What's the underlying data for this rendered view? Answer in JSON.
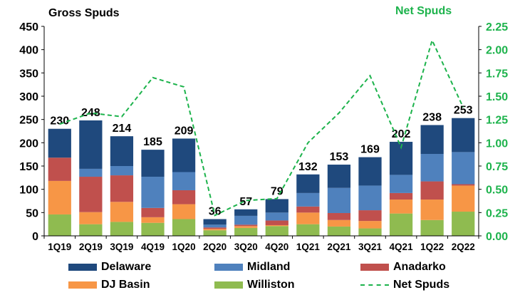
{
  "chart_data": {
    "type": "bar",
    "stacked": true,
    "title_left": "Gross Spuds",
    "title_right": "Net Spuds",
    "categories": [
      "1Q19",
      "2Q19",
      "3Q19",
      "4Q19",
      "1Q20",
      "2Q20",
      "3Q20",
      "4Q20",
      "1Q21",
      "2Q21",
      "3Q21",
      "4Q21",
      "1Q22",
      "2Q22"
    ],
    "series": [
      {
        "name": "Williston",
        "color": "#8fbb50",
        "values": [
          46,
          25,
          30,
          28,
          36,
          12,
          17,
          21,
          25,
          20,
          16,
          48,
          34,
          52
        ]
      },
      {
        "name": "DJ Basin",
        "color": "#f79646",
        "values": [
          72,
          26,
          43,
          12,
          32,
          3,
          4,
          2,
          25,
          14,
          16,
          30,
          44,
          56
        ]
      },
      {
        "name": "Anadarko",
        "color": "#c0504d",
        "values": [
          50,
          76,
          57,
          20,
          30,
          3,
          3,
          10,
          13,
          15,
          23,
          14,
          39,
          3
        ]
      },
      {
        "name": "Midland",
        "color": "#4f81bd",
        "values": [
          0,
          17,
          20,
          67,
          39,
          6,
          19,
          17,
          29,
          54,
          53,
          39,
          59,
          69
        ]
      },
      {
        "name": "Delaware",
        "color": "#1f497d",
        "values": [
          62,
          104,
          64,
          58,
          72,
          12,
          14,
          29,
          40,
          50,
          61,
          71,
          62,
          73
        ]
      }
    ],
    "totals": [
      230,
      248,
      214,
      185,
      209,
      36,
      57,
      79,
      132,
      153,
      169,
      202,
      238,
      253
    ],
    "line": {
      "name": "Net Spuds",
      "color": "#1db34c",
      "style": "dashed",
      "axis": "right",
      "values": [
        1.2,
        1.32,
        1.28,
        1.7,
        1.6,
        0.22,
        0.38,
        0.4,
        1.0,
        1.32,
        1.72,
        0.95,
        2.1,
        1.38
      ]
    },
    "ylim_left": [
      0,
      450
    ],
    "yticks_left": [
      "0",
      "50",
      "100",
      "150",
      "200",
      "250",
      "300",
      "350",
      "400",
      "450"
    ],
    "ylim_right": [
      0,
      2.25
    ],
    "yticks_right": [
      "0.00",
      "0.25",
      "0.50",
      "0.75",
      "1.00",
      "1.25",
      "1.50",
      "1.75",
      "2.00",
      "2.25"
    ],
    "grid": false,
    "legend_position": "bottom"
  },
  "legend": {
    "items": [
      {
        "label": "Delaware",
        "color": "#1f497d"
      },
      {
        "label": "Midland",
        "color": "#4f81bd"
      },
      {
        "label": "Anadarko",
        "color": "#c0504d"
      },
      {
        "label": "DJ Basin",
        "color": "#f79646"
      },
      {
        "label": "Williston",
        "color": "#8fbb50"
      },
      {
        "label": "Net Spuds",
        "color": "#1db34c"
      }
    ]
  }
}
